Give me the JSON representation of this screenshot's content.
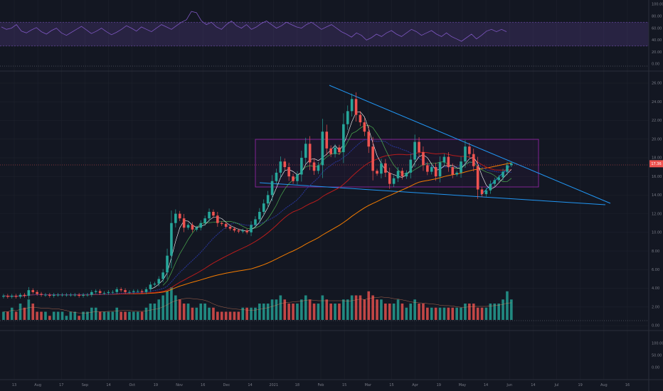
{
  "chart_data": [
    {
      "type": "line",
      "panel": "rsi",
      "y_ticks": [
        "100.00",
        "80.00",
        "60.00",
        "40.00",
        "20.00",
        "0.00"
      ],
      "band_upper": 70,
      "band_lower": 30,
      "ylim": [
        0,
        100
      ],
      "series": [
        {
          "color": "#7e57c2",
          "values": [
            62,
            58,
            60,
            66,
            55,
            52,
            57,
            61,
            54,
            50,
            56,
            60,
            52,
            48,
            53,
            58,
            63,
            57,
            51,
            55,
            60,
            54,
            49,
            53,
            58,
            64,
            60,
            55,
            62,
            58,
            54,
            60,
            66,
            62,
            58,
            64,
            70,
            74,
            88,
            86,
            72,
            66,
            70,
            62,
            58,
            66,
            72,
            64,
            60,
            66,
            58,
            62,
            68,
            72,
            66,
            60,
            64,
            70,
            66,
            62,
            60,
            66,
            70,
            64,
            58,
            62,
            66,
            60,
            54,
            50,
            45,
            52,
            48,
            40,
            44,
            50,
            46,
            52,
            56,
            50,
            46,
            52,
            58,
            54,
            48,
            52,
            56,
            50,
            46,
            52,
            46,
            42,
            38,
            44,
            50,
            42,
            48,
            55,
            58,
            54,
            58,
            54
          ]
        }
      ]
    },
    {
      "type": "candlestick",
      "panel": "price",
      "y_ticks": [
        "26.00",
        "24.00",
        "22.00",
        "20.00",
        "18.00",
        "16.00",
        "14.00",
        "12.00",
        "10.00",
        "8.00",
        "6.00",
        "4.00",
        "2.00",
        "0.00"
      ],
      "ylim": [
        0,
        27
      ],
      "x_ticks": [
        "13",
        "Aug",
        "17",
        "Sep",
        "14",
        "Oct",
        "19",
        "Nov",
        "16",
        "Dec",
        "14",
        "2021",
        "18",
        "Feb",
        "15",
        "Mar",
        "15",
        "Apr",
        "19",
        "May",
        "14",
        "Jun",
        "14",
        "Jul",
        "19",
        "Aug",
        "16"
      ],
      "last_price": "17.36",
      "last_price_color": "#ef5350",
      "up_color": "#26a69a",
      "down_color": "#ef5350",
      "close": [
        3.2,
        3.1,
        3.2,
        3.1,
        3.3,
        3.2,
        3.8,
        3.6,
        3.4,
        3.3,
        3.3,
        3.2,
        3.3,
        3.3,
        3.3,
        3.3,
        3.3,
        3.3,
        3.2,
        3.3,
        3.3,
        3.6,
        3.7,
        3.5,
        3.5,
        3.6,
        3.6,
        3.9,
        3.8,
        3.6,
        3.6,
        3.7,
        3.7,
        3.6,
        3.9,
        4.4,
        4.5,
        5.0,
        5.7,
        7.5,
        11.0,
        12.0,
        11.5,
        10.5,
        10.8,
        10.3,
        10.5,
        11.0,
        11.5,
        12.2,
        11.8,
        11.0,
        10.9,
        10.6,
        10.4,
        10.2,
        10.1,
        10.2,
        10.0,
        10.8,
        11.4,
        12.2,
        13.1,
        14.0,
        15.5,
        16.4,
        17.6,
        17.0,
        16.0,
        15.5,
        16.2,
        18.0,
        19.5,
        17.5,
        16.6,
        17.2,
        20.8,
        19.0,
        18.4,
        19.1,
        18.6,
        21.6,
        23.0,
        24.3,
        22.6,
        21.8,
        20.8,
        19.2,
        16.6,
        16.3,
        17.4,
        16.4,
        15.2,
        15.8,
        16.6,
        16.0,
        16.4,
        17.8,
        19.7,
        18.6,
        17.2,
        16.5,
        17.0,
        16.0,
        17.5,
        18.1,
        17.0,
        16.2,
        16.4,
        17.6,
        19.2,
        18.4,
        17.1,
        14.6,
        14.1,
        14.5,
        15.2,
        15.6,
        15.9,
        16.5,
        17.2,
        17.4
      ]
    },
    {
      "type": "bar",
      "panel": "volume",
      "values": [
        2,
        2,
        3,
        2,
        4,
        3,
        5,
        4,
        2,
        2,
        2,
        1,
        2,
        2,
        2,
        1,
        2,
        2,
        1,
        2,
        2,
        3,
        3,
        2,
        2,
        2,
        2,
        3,
        2,
        2,
        2,
        2,
        2,
        2,
        3,
        4,
        4,
        5,
        6,
        7,
        8,
        6,
        5,
        4,
        4,
        3,
        3,
        4,
        4,
        3,
        3,
        2,
        2,
        2,
        2,
        2,
        2,
        3,
        3,
        3,
        3,
        4,
        4,
        4,
        5,
        5,
        6,
        5,
        4,
        4,
        4,
        5,
        6,
        5,
        4,
        4,
        6,
        5,
        4,
        4,
        4,
        5,
        5,
        6,
        6,
        6,
        5,
        7,
        6,
        5,
        5,
        4,
        4,
        4,
        5,
        4,
        3,
        4,
        5,
        4,
        4,
        3,
        3,
        3,
        3,
        3,
        3,
        3,
        3,
        3,
        4,
        4,
        4,
        3,
        3,
        3,
        4,
        4,
        4,
        5,
        7,
        5
      ]
    },
    {
      "type": "line",
      "panel": "lower",
      "y_ticks": [
        "100.00",
        "50.00",
        "0.00"
      ],
      "ylim": [
        0,
        100
      ]
    }
  ]
}
